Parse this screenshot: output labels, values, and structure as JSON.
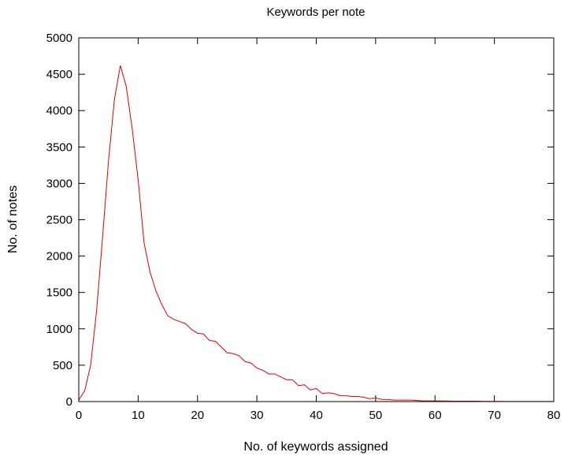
{
  "chart_data": {
    "type": "line",
    "title": "Keywords per note",
    "xlabel": "No. of keywords assigned",
    "ylabel": "No. of notes",
    "xlim": [
      0,
      80
    ],
    "ylim": [
      0,
      5000
    ],
    "xticks": [
      0,
      10,
      20,
      30,
      40,
      50,
      60,
      70,
      80
    ],
    "yticks": [
      0,
      500,
      1000,
      1500,
      2000,
      2500,
      3000,
      3500,
      4000,
      4500,
      5000
    ],
    "grid": false,
    "legend": "none",
    "line_color": "#e00000",
    "series": [
      {
        "x": [
          0,
          1,
          2,
          3,
          4,
          5,
          6,
          7,
          8,
          9,
          10,
          11,
          12,
          13,
          14,
          15,
          16,
          17,
          18,
          19,
          20,
          21,
          22,
          23,
          24,
          25,
          26,
          27,
          28,
          29,
          30,
          31,
          32,
          33,
          34,
          35,
          36,
          37,
          38,
          39,
          40,
          41,
          42,
          43,
          44,
          45,
          46,
          47,
          48,
          49,
          50,
          51,
          52,
          53,
          54,
          55,
          56,
          57,
          58,
          59,
          60,
          61,
          62,
          63,
          64,
          65,
          66,
          67,
          68,
          69,
          70,
          71,
          72,
          73,
          74,
          75,
          76,
          77,
          78,
          79,
          80
        ],
        "values": [
          20,
          150,
          500,
          1250,
          2250,
          3300,
          4150,
          4620,
          4330,
          3750,
          3050,
          2180,
          1780,
          1520,
          1330,
          1180,
          1130,
          1100,
          1070,
          990,
          940,
          930,
          840,
          830,
          750,
          670,
          660,
          630,
          550,
          530,
          460,
          430,
          380,
          380,
          340,
          300,
          300,
          220,
          230,
          160,
          180,
          110,
          120,
          110,
          80,
          80,
          70,
          70,
          60,
          40,
          50,
          30,
          30,
          20,
          20,
          20,
          20,
          15,
          10,
          10,
          10,
          8,
          8,
          5,
          5,
          5,
          5,
          5,
          3,
          3,
          3,
          3,
          2,
          2,
          2,
          2,
          2,
          1,
          1,
          1,
          1
        ]
      }
    ]
  }
}
